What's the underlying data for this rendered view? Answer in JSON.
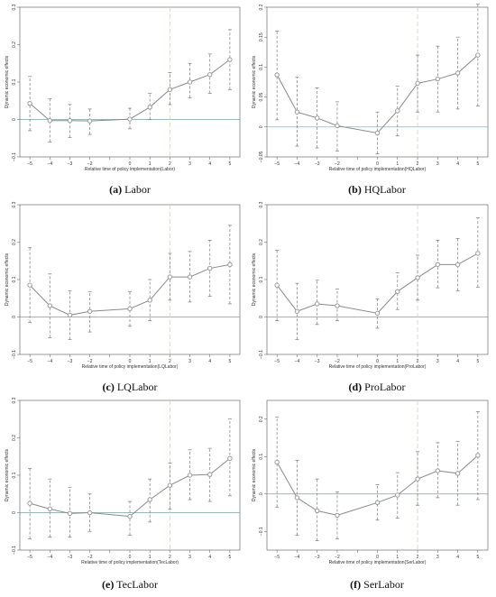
{
  "chart_data": [
    {
      "type": "line",
      "caption_letter": "(a)",
      "caption_name": "Labor",
      "xlabel": "Relative time of policy implementation(Labor)",
      "ylabel": "Dynamic economic effects",
      "x": [
        -5,
        -4,
        -3,
        -2,
        -1,
        0,
        1,
        2,
        3,
        4,
        5
      ],
      "xtick_labels": [
        "−5",
        "−4",
        "−3",
        "−2",
        "",
        "0",
        "1",
        "2",
        "3",
        "4",
        "5"
      ],
      "ylim": [
        -0.1,
        0.3
      ],
      "yticks": [
        -0.1,
        0,
        0.1,
        0.2,
        0.3
      ],
      "ytick_labels": [
        "−0.1",
        "0",
        "0.1",
        "0.2",
        "0.3"
      ],
      "vline_x": 2,
      "hline_y": 0,
      "series": [
        {
          "values": [
            0.043,
            -0.003,
            -0.003,
            -0.004,
            0.001,
            0.033,
            0.08,
            0.1,
            0.12,
            0.16
          ],
          "x": [
            -5,
            -4,
            -3,
            -2,
            0,
            1,
            2,
            3,
            4,
            5
          ],
          "lower": [
            -0.03,
            -0.06,
            -0.048,
            -0.04,
            -0.025,
            0.0,
            0.04,
            0.058,
            0.07,
            0.08
          ],
          "upper": [
            0.115,
            0.055,
            0.04,
            0.028,
            0.03,
            0.07,
            0.125,
            0.15,
            0.175,
            0.24
          ]
        }
      ]
    },
    {
      "type": "line",
      "caption_letter": "(b)",
      "caption_name": "HQLabor",
      "xlabel": "Relative time of policy implementation(HQLabor)",
      "ylabel": "Dynamic economic effects",
      "x": [
        -5,
        -4,
        -3,
        -2,
        -1,
        0,
        1,
        2,
        3,
        4,
        5
      ],
      "xtick_labels": [
        "−5",
        "−4",
        "−3",
        "−2",
        "",
        "0",
        "1",
        "2",
        "3",
        "4",
        "5"
      ],
      "ylim": [
        -0.05,
        0.2
      ],
      "yticks": [
        -0.05,
        0,
        0.05,
        0.1,
        0.15,
        0.2
      ],
      "ytick_labels": [
        "−0.05",
        "0",
        "0.05",
        "0.1",
        "0.15",
        "0.2"
      ],
      "vline_x": 2,
      "hline_y": 0,
      "series": [
        {
          "values": [
            0.087,
            0.025,
            0.015,
            0.002,
            -0.01,
            0.027,
            0.073,
            0.08,
            0.09,
            0.12
          ],
          "x": [
            -5,
            -4,
            -3,
            -2,
            0,
            1,
            2,
            3,
            4,
            5
          ],
          "lower": [
            0.012,
            -0.032,
            -0.035,
            -0.04,
            -0.045,
            -0.015,
            0.025,
            0.025,
            0.03,
            0.035
          ],
          "upper": [
            0.16,
            0.083,
            0.065,
            0.042,
            0.025,
            0.068,
            0.12,
            0.135,
            0.15,
            0.205
          ]
        }
      ]
    },
    {
      "type": "line",
      "caption_letter": "(c)",
      "caption_name": "LQLabor",
      "xlabel": "Relative time of policy implementation(LQLabor)",
      "ylabel": "Dynamic economic effects",
      "x": [
        -5,
        -4,
        -3,
        -2,
        -1,
        0,
        1,
        2,
        3,
        4,
        5
      ],
      "xtick_labels": [
        "−5",
        "−4",
        "−3",
        "−2",
        "",
        "0",
        "1",
        "2",
        "3",
        "4",
        "5"
      ],
      "ylim": [
        -0.1,
        0.3
      ],
      "yticks": [
        -0.1,
        0,
        0.1,
        0.2,
        0.3
      ],
      "ytick_labels": [
        "−0.1",
        "0",
        "0.1",
        "0.2",
        "0.3"
      ],
      "vline_x": 2,
      "hline_y": 0,
      "series": [
        {
          "values": [
            0.085,
            0.03,
            0.005,
            0.015,
            0.022,
            0.045,
            0.107,
            0.107,
            0.13,
            0.14
          ],
          "x": [
            -5,
            -4,
            -3,
            -2,
            0,
            1,
            2,
            3,
            4,
            5
          ],
          "lower": [
            -0.015,
            -0.055,
            -0.06,
            -0.04,
            -0.025,
            -0.01,
            0.045,
            0.04,
            0.055,
            0.035
          ],
          "upper": [
            0.185,
            0.115,
            0.07,
            0.068,
            0.068,
            0.1,
            0.17,
            0.175,
            0.205,
            0.245
          ]
        }
      ]
    },
    {
      "type": "line",
      "caption_letter": "(d)",
      "caption_name": "ProLabor",
      "xlabel": "Relative time of policy implementation(ProLabor)",
      "ylabel": "Dynamic economic effects",
      "x": [
        -5,
        -4,
        -3,
        -2,
        -1,
        0,
        1,
        2,
        3,
        4,
        5
      ],
      "xtick_labels": [
        "−5",
        "−4",
        "−3",
        "−2",
        "",
        "0",
        "1",
        "2",
        "3",
        "4",
        "5"
      ],
      "ylim": [
        -0.1,
        0.3
      ],
      "yticks": [
        -0.1,
        0,
        0.1,
        0.2,
        0.3
      ],
      "ytick_labels": [
        "−0.1",
        "0",
        "0.1",
        "0.2",
        "0.3"
      ],
      "vline_x": 2,
      "hline_y": 0,
      "series": [
        {
          "values": [
            0.085,
            0.015,
            0.035,
            0.03,
            0.01,
            0.068,
            0.105,
            0.14,
            0.14,
            0.17
          ],
          "x": [
            -5,
            -4,
            -3,
            -2,
            0,
            1,
            2,
            3,
            4,
            5
          ],
          "lower": [
            -0.01,
            -0.06,
            -0.02,
            -0.01,
            -0.03,
            0.02,
            0.045,
            0.078,
            0.07,
            0.08
          ],
          "upper": [
            0.178,
            0.09,
            0.098,
            0.075,
            0.048,
            0.118,
            0.165,
            0.205,
            0.21,
            0.265
          ]
        }
      ]
    },
    {
      "type": "line",
      "caption_letter": "(e)",
      "caption_name": "TecLabor",
      "xlabel": "Relative time of policy implementation(TecLabor)",
      "ylabel": "Dynamic economic effects",
      "x": [
        -5,
        -4,
        -3,
        -2,
        -1,
        0,
        1,
        2,
        3,
        4,
        5
      ],
      "xtick_labels": [
        "−5",
        "−4",
        "−3",
        "−2",
        "",
        "0",
        "1",
        "2",
        "3",
        "4",
        "5"
      ],
      "ylim": [
        -0.1,
        0.3
      ],
      "yticks": [
        -0.1,
        0,
        0.1,
        0.2,
        0.3
      ],
      "ytick_labels": [
        "−0.1",
        "0",
        "0.1",
        "0.2",
        "0.3"
      ],
      "vline_x": 2,
      "hline_y": 0,
      "series": [
        {
          "values": [
            0.025,
            0.01,
            -0.002,
            0.0,
            -0.01,
            0.035,
            0.073,
            0.1,
            0.102,
            0.145
          ],
          "x": [
            -5,
            -4,
            -3,
            -2,
            0,
            1,
            2,
            3,
            4,
            5
          ],
          "lower": [
            -0.07,
            -0.065,
            -0.065,
            -0.05,
            -0.06,
            -0.025,
            0.01,
            0.035,
            0.03,
            0.045
          ],
          "upper": [
            0.118,
            0.09,
            0.068,
            0.05,
            0.03,
            0.09,
            0.133,
            0.168,
            0.172,
            0.25
          ]
        }
      ]
    },
    {
      "type": "line",
      "caption_letter": "(f)",
      "caption_name": "SerLabor",
      "xlabel": "Relative time of policy implementation(SerLabor)",
      "ylabel": "Dynamic economic effects",
      "x": [
        -5,
        -4,
        -3,
        -2,
        -1,
        0,
        1,
        2,
        3,
        4,
        5
      ],
      "xtick_labels": [
        "−5",
        "−4",
        "−3",
        "−2",
        "",
        "0",
        "1",
        "2",
        "3",
        "4",
        "5"
      ],
      "ylim": [
        -0.15,
        0.25
      ],
      "yticks": [
        -0.1,
        0,
        0.1,
        0.2
      ],
      "ytick_labels": [
        "−0.1",
        "0",
        "0.1",
        "0.2"
      ],
      "vline_x": 2,
      "hline_y": 0,
      "series": [
        {
          "values": [
            0.085,
            -0.01,
            -0.045,
            -0.057,
            -0.023,
            -0.003,
            0.04,
            0.062,
            0.055,
            0.103
          ],
          "x": [
            -5,
            -4,
            -3,
            -2,
            0,
            1,
            2,
            3,
            4,
            5
          ],
          "lower": [
            -0.035,
            -0.11,
            -0.125,
            -0.12,
            -0.07,
            -0.065,
            -0.03,
            -0.01,
            -0.03,
            -0.015
          ],
          "upper": [
            0.205,
            0.09,
            0.04,
            0.005,
            0.025,
            0.057,
            0.113,
            0.137,
            0.14,
            0.22
          ]
        }
      ]
    }
  ],
  "colors": {
    "marker": "#9a9a9a",
    "line": "#8a8a8a",
    "ci": "#7a7a7a",
    "vline": "#c8d8b8",
    "hline": "#7aa0a0",
    "frame": "#555555"
  }
}
